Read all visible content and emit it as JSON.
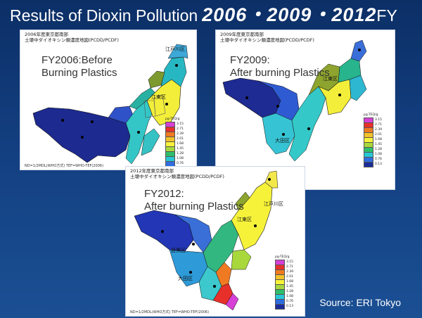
{
  "title": {
    "part1": "Results of Dioxin Pollution",
    "part2": "2006・2009・2012",
    "part3": "FY"
  },
  "panels": [
    {
      "header_line1": "2006年度東京都南部",
      "header_line2": "土壌中ダイオキシン類濃度地図(PCDD/PCDF)",
      "caption": "FY2006:Before\nBurning Plastics",
      "footer": "ND=1/2MDL(WHO方式) TEF=WHO-TEF(2006)",
      "wards": [
        "江東区",
        "江戸川区"
      ]
    },
    {
      "header_line1": "2009年度東京都南部",
      "header_line2": "土壌中ダイオキシン類濃度地図(PCDD/PCDF)",
      "caption": "FY2009:\nAfter burning Plastics",
      "footer": "",
      "wards": [
        "江東区",
        "大田区"
      ]
    },
    {
      "header_line1": "2012年度東京都南部",
      "header_line2": "土壌中ダイオキシン類濃度地図(PCDD/PCDF)",
      "caption": "FY2012:\nAfter burning Plastics",
      "footer": "ND=1/2MDL(WHO方式) TEF=WHO-TEF(2006)",
      "wards": [
        "江戸川区",
        "江東区",
        "目黒区",
        "大田区"
      ]
    }
  ],
  "legend": {
    "unit": "pg-TEQ/g",
    "values": [
      "3.15",
      "2.71",
      "2.39",
      "2.01",
      "1.68",
      "1.45",
      "1.28",
      "1.08",
      "0.76",
      "0.13"
    ],
    "colors": [
      "#d640d6",
      "#e8302a",
      "#f07a22",
      "#f3c22a",
      "#f6f23a",
      "#a8d83c",
      "#2fbf6c",
      "#28c7d6",
      "#2f6de0",
      "#1b2c9a"
    ]
  },
  "source": "Source: ERI Tokyo"
}
